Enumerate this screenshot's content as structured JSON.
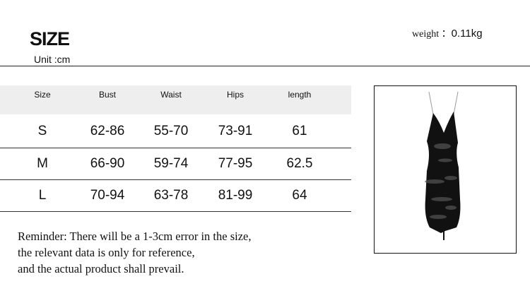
{
  "header": {
    "title": "SIZE",
    "unit": "Unit :cm",
    "weight_label": "weight",
    "weight_sep": "：",
    "weight_value": "0.11kg"
  },
  "table": {
    "columns": [
      "Size",
      "Bust",
      "Waist",
      "Hips",
      "length"
    ],
    "rows": [
      [
        "S",
        "62-86",
        "55-70",
        "73-91",
        "61"
      ],
      [
        "M",
        "66-90",
        "59-74",
        "77-95",
        "62.5"
      ],
      [
        "L",
        "70-94",
        "63-78",
        "81-99",
        "64"
      ]
    ]
  },
  "reminder": [
    "Reminder: There will be a 1-3cm error in the size,",
    "the relevant data is only for reference,",
    "and the actual product shall prevail."
  ],
  "product_image": {
    "icon": "black-distressed-slip-dress"
  }
}
